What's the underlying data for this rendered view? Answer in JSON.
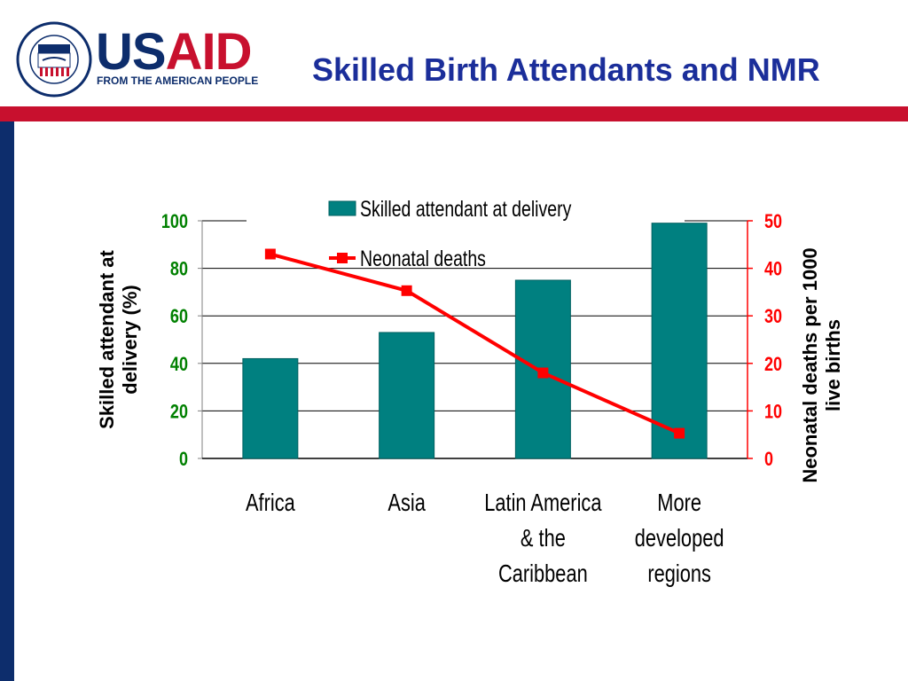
{
  "header": {
    "brand_us": "US",
    "brand_aid": "AID",
    "tagline": "FROM THE AMERICAN PEOPLE",
    "slide_title": "Skilled Birth Attendants and NMR",
    "colors": {
      "navy": "#0d2d6c",
      "red": "#c8102e",
      "title": "#1b2e9a"
    }
  },
  "chart_data": {
    "type": "bar",
    "categories": [
      [
        "Africa"
      ],
      [
        "Asia"
      ],
      [
        "Latin America",
        "& the",
        "Caribbean"
      ],
      [
        "More",
        "developed",
        "regions"
      ]
    ],
    "series": [
      {
        "name": "Skilled attendant at delivery",
        "type": "bar",
        "axis": "left",
        "color": "#008080",
        "values": [
          42,
          53,
          75,
          99
        ]
      },
      {
        "name": "Neonatal deaths",
        "type": "line",
        "axis": "right",
        "color": "#ff0000",
        "values": [
          43,
          35.3,
          18,
          5.3
        ]
      }
    ],
    "ylabel": "Skilled attendant at delivery (%)",
    "ylabel2": "Neonatal deaths per 1000 live births",
    "ylim": [
      0,
      100
    ],
    "ylim2": [
      0,
      50
    ],
    "yticks": [
      "0",
      "20",
      "40",
      "60",
      "80",
      "100"
    ],
    "yticks2": [
      "0",
      "10",
      "20",
      "30",
      "40",
      "50"
    ],
    "left_tick_color": "#008000",
    "right_tick_color": "#ff0000",
    "grid": true,
    "legend_position": "top-center"
  }
}
